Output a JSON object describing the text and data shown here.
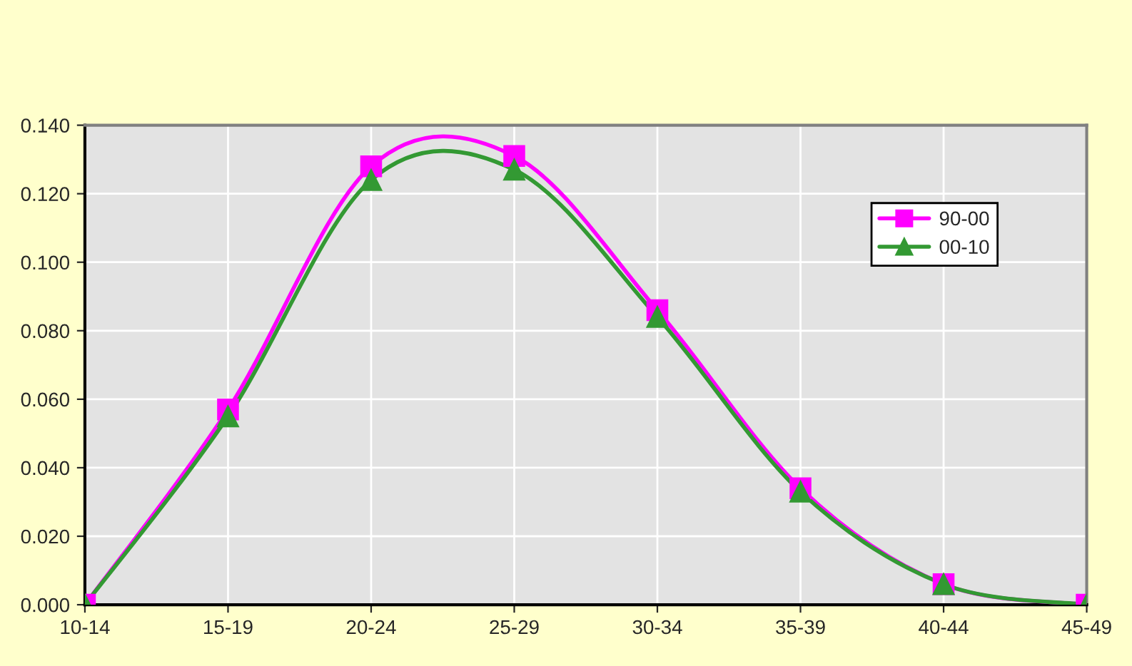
{
  "chart_data": {
    "type": "line",
    "categories": [
      "10-14",
      "15-19",
      "20-24",
      "25-29",
      "30-34",
      "35-39",
      "40-44",
      "45-49"
    ],
    "series": [
      {
        "name": "90-00",
        "color": "#ff00ff",
        "marker": "square",
        "values": [
          0.0,
          0.057,
          0.128,
          0.131,
          0.086,
          0.034,
          0.006,
          0.0
        ]
      },
      {
        "name": "00-10",
        "color": "#339933",
        "marker": "triangle",
        "values": [
          0.0,
          0.055,
          0.124,
          0.127,
          0.084,
          0.033,
          0.006,
          0.0
        ]
      }
    ],
    "ylim": [
      0,
      0.14
    ],
    "yticks": [
      {
        "value": 0,
        "label": "0.000"
      },
      {
        "value": 0.02,
        "label": "0.020"
      },
      {
        "value": 0.04,
        "label": "0.040"
      },
      {
        "value": 0.06,
        "label": "0.060"
      },
      {
        "value": 0.08,
        "label": "0.080"
      },
      {
        "value": 0.1,
        "label": "0.100"
      },
      {
        "value": 0.12,
        "label": "0.120"
      },
      {
        "value": 0.14,
        "label": "0.140"
      }
    ],
    "grid": true,
    "legend": "top right",
    "line_style": "solid"
  }
}
